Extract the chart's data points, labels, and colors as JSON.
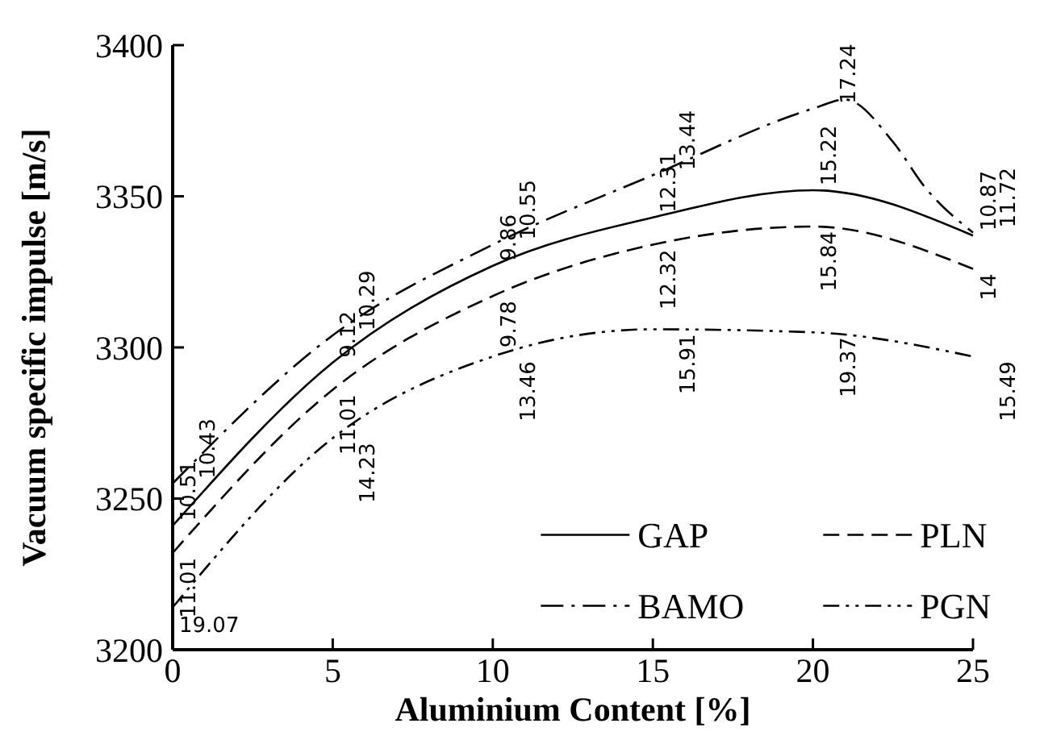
{
  "chart_data": {
    "type": "line",
    "xlabel": "Aluminium Content [%]",
    "ylabel": "Vacuum specific impulse [m/s]",
    "xlim": [
      0,
      25
    ],
    "ylim": [
      3200,
      3400
    ],
    "xticks": [
      0,
      5,
      10,
      15,
      20,
      25
    ],
    "yticks": [
      3200,
      3250,
      3300,
      3350,
      3400
    ],
    "grid": false,
    "legend": "bottom right",
    "marker": "none",
    "series": [
      {
        "name": "GAP",
        "color": "#000000",
        "line_style": "solid",
        "x": [
          0,
          5,
          10,
          15,
          20,
          25
        ],
        "values": [
          3241,
          3295,
          3327,
          3343,
          3352,
          3337
        ]
      },
      {
        "name": "PLN",
        "color": "#000000",
        "line_style": "dashed",
        "x": [
          0,
          5,
          10,
          15,
          20,
          25
        ],
        "values": [
          3232,
          3286,
          3317,
          3334,
          3340,
          3326
        ]
      },
      {
        "name": "BAMO",
        "color": "#000000",
        "line_style": "dashdot",
        "x": [
          0,
          5,
          10,
          15,
          20,
          21,
          22.5,
          23.5,
          25
        ],
        "values": [
          3255,
          3304,
          3334,
          3357,
          3379,
          3382,
          3368,
          3353,
          3338
        ]
      },
      {
        "name": "PGN",
        "color": "#000000",
        "line_style": "dashdotdot",
        "x": [
          0,
          5,
          10,
          15,
          20,
          25
        ],
        "values": [
          3214,
          3270,
          3297,
          3306,
          3305,
          3297
        ]
      }
    ],
    "annotations": [
      {
        "text": "10.51",
        "x": 0,
        "y": 3241
      },
      {
        "text": "9.12",
        "x": 5,
        "y": 3295
      },
      {
        "text": "9.86",
        "x": 10,
        "y": 3327
      },
      {
        "text": "12.31",
        "x": 15,
        "y": 3343
      },
      {
        "text": "15.22",
        "x": 20,
        "y": 3352
      },
      {
        "text": "10.87",
        "x": 25,
        "y": 3337
      },
      {
        "text": "11.01",
        "x": 0,
        "y": 3232
      },
      {
        "text": "11.01",
        "x": 5,
        "y": 3286
      },
      {
        "text": "9.78",
        "x": 10,
        "y": 3317
      },
      {
        "text": "12.32",
        "x": 15,
        "y": 3334
      },
      {
        "text": "15.84",
        "x": 20,
        "y": 3340
      },
      {
        "text": "14",
        "x": 25,
        "y": 3326
      },
      {
        "text": "10.43",
        "x": 0,
        "y": 3255
      },
      {
        "text": "10.29",
        "x": 5,
        "y": 3304
      },
      {
        "text": "10.55",
        "x": 10,
        "y": 3334
      },
      {
        "text": "13.44",
        "x": 15,
        "y": 3357
      },
      {
        "text": "17.24",
        "x": 20,
        "y": 3379
      },
      {
        "text": "11.72",
        "x": 25,
        "y": 3338
      },
      {
        "text": "19.07",
        "x": 0,
        "y": 3214
      },
      {
        "text": "14.23",
        "x": 5,
        "y": 3270
      },
      {
        "text": "13.46",
        "x": 10,
        "y": 3297
      },
      {
        "text": "15.91",
        "x": 15,
        "y": 3306
      },
      {
        "text": "19.37",
        "x": 20,
        "y": 3305
      },
      {
        "text": "15.49",
        "x": 25,
        "y": 3297
      }
    ]
  }
}
